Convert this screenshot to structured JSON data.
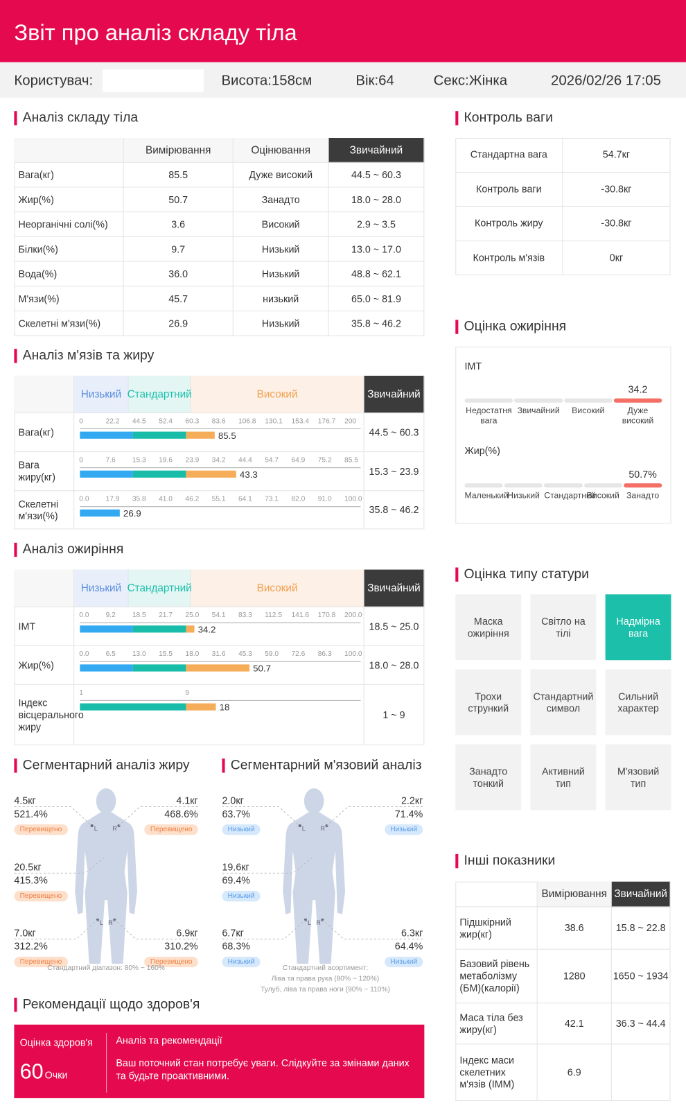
{
  "header": {
    "title": "Звіт про аналіз складу тіла"
  },
  "info": {
    "user_label": "Користувач:",
    "height": "Висота:158см",
    "age": "Вік:64",
    "sex": "Секс:Жінка",
    "datetime": "2026/02/26 17:05"
  },
  "composition": {
    "title": "Аналіз складу тіла",
    "columns": [
      "Вимірювання",
      "Оцінювання",
      "Звичайний"
    ],
    "rows": [
      [
        "Вага(кг)",
        "85.5",
        "Дуже високий",
        "44.5 ~ 60.3"
      ],
      [
        "Жир(%)",
        "50.7",
        "Занадто",
        "18.0 ~ 28.0"
      ],
      [
        "Неорганічні солі(%)",
        "3.6",
        "Високий",
        "2.9 ~ 3.5"
      ],
      [
        "Білки(%)",
        "9.7",
        "Низький",
        "13.0 ~ 17.0"
      ],
      [
        "Вода(%)",
        "36.0",
        "Низький",
        "48.8 ~ 62.1"
      ],
      [
        "М'язи(%)",
        "45.7",
        "низький",
        "65.0 ~ 81.9"
      ],
      [
        "Скелетні м'язи(%)",
        "26.9",
        "Низький",
        "35.8 ~ 46.2"
      ]
    ]
  },
  "muscle_fat": {
    "title": "Аналіз м'язів та жиру",
    "levels": [
      "Низький",
      "Стандартний",
      "Високий"
    ],
    "normal": "Звичайний",
    "rows": [
      {
        "name": "Вага(кг)",
        "ticks": [
          "0",
          "22.2",
          "44.5",
          "52.4",
          "60.3",
          "83.6",
          "106.8",
          "130.1",
          "153.4",
          "176.7",
          "200"
        ],
        "value": 85.5,
        "range": "44.5 ~ 60.3"
      },
      {
        "name": "Вага жиру(кг)",
        "ticks": [
          "0",
          "7.6",
          "15.3",
          "19.6",
          "23.9",
          "34.2",
          "44.4",
          "54.7",
          "64.9",
          "75.2",
          "85.5"
        ],
        "value": 43.3,
        "range": "15.3 ~ 23.9"
      },
      {
        "name": "Скелетні м'язи(%)",
        "ticks": [
          "0.0",
          "17.9",
          "35.8",
          "41.0",
          "46.2",
          "55.1",
          "64.1",
          "73.1",
          "82.0",
          "91.0",
          "100.0"
        ],
        "value": 26.9,
        "range": "35.8 ~ 46.2"
      }
    ]
  },
  "obesity": {
    "title": "Аналіз ожиріння",
    "levels": [
      "Низький",
      "Стандартний",
      "Високий"
    ],
    "normal": "Звичайний",
    "rows": [
      {
        "name": "IMT",
        "ticks": [
          "0.0",
          "9.2",
          "18.5",
          "21.7",
          "25.0",
          "54.1",
          "83.3",
          "112.5",
          "141.6",
          "170.8",
          "200.0"
        ],
        "value": 34.2,
        "range": "18.5 ~ 25.0"
      },
      {
        "name": "Жир(%)",
        "ticks": [
          "0.0",
          "6.5",
          "13.0",
          "15.5",
          "18.0",
          "31.6",
          "45.3",
          "59.0",
          "72.6",
          "86.3",
          "100.0"
        ],
        "value": 50.7,
        "range": "18.0 ~ 28.0"
      },
      {
        "name": "Індекс вісцерального жиру",
        "ticks": [
          "1",
          "9"
        ],
        "value": 18,
        "range": "1 ~ 9"
      }
    ]
  },
  "body_labels": {
    "left": "L",
    "right": "R"
  },
  "segmental_fat": {
    "title": "Сегментарний аналіз жиру",
    "footnote": "Стандартний діапазон: 80% ~ 160%",
    "items": [
      {
        "weight": "4.5кг",
        "percent": "521.4%",
        "status": "Перевищено"
      },
      {
        "weight": "4.1кг",
        "percent": "468.6%",
        "status": "Перевищено"
      },
      {
        "weight": "20.5кг",
        "percent": "415.3%",
        "status": "Перевищено"
      },
      {
        "weight": "7.0кг",
        "percent": "312.2%",
        "status": "Перевищено"
      },
      {
        "weight": "6.9кг",
        "percent": "310.2%",
        "status": "Перевищено"
      }
    ]
  },
  "segmental_muscle": {
    "title": "Сегментарний м'язовий аналіз",
    "footnote": [
      "Стандартний асортимент:",
      "Ліва та права рука (80% ~ 120%)",
      "Тулуб, ліва та права ноги (90% ~ 110%)"
    ],
    "items": [
      {
        "weight": "2.0кг",
        "percent": "63.7%",
        "status": "Низький"
      },
      {
        "weight": "2.2кг",
        "percent": "71.4%",
        "status": "Низький"
      },
      {
        "weight": "19.6кг",
        "percent": "69.4%",
        "status": "Низький"
      },
      {
        "weight": "6.7кг",
        "percent": "68.3%",
        "status": "Низький"
      },
      {
        "weight": "6.3кг",
        "percent": "64.4%",
        "status": "Низький"
      }
    ]
  },
  "health": {
    "title": "Рекомендації щодо здоров'я",
    "score_label": "Оцінка здоров'я",
    "score": "60",
    "score_unit": "Очки",
    "analysis_title": "Аналіз та рекомендації",
    "text": "Ваш поточний стан потребує уваги. Слідкуйте за змінами даних та будьте проактивними."
  },
  "weight_control": {
    "title": "Контроль ваги",
    "rows": [
      [
        "Стандартна вага",
        "54.7кг"
      ],
      [
        "Контроль ваги",
        "-30.8кг"
      ],
      [
        "Контроль жиру",
        "-30.8кг"
      ],
      [
        "Контроль м'язів",
        "0кг"
      ]
    ]
  },
  "obesity_assessment": {
    "title": "Оцінка ожиріння",
    "imt": {
      "label": "IMT",
      "value": "34.2",
      "levels": [
        "Недостатня вага",
        "Звичайний",
        "Високий",
        "Дуже високий"
      ],
      "active": 3
    },
    "fat": {
      "label": "Жир(%)",
      "value": "50.7%",
      "levels": [
        "Маленький",
        "Низький",
        "Стандартний",
        "Високий",
        "Занадто"
      ],
      "active": 4
    }
  },
  "body_type": {
    "title": "Оцінка типу статури",
    "cells": [
      "Маска ожиріння",
      "Світло на тілі",
      "Надмірна вага",
      "Трохи стрункий",
      "Стандартний символ",
      "Сильний характер",
      "Занадто тонкий",
      "Активний тип",
      "М'язовий тип"
    ],
    "active": 2
  },
  "other": {
    "title": "Інші показники",
    "columns": [
      "Вимірювання",
      "Звичайний"
    ],
    "rows": [
      [
        "Підшкірний жир(кг)",
        "38.6",
        "15.8 ~ 22.8"
      ],
      [
        "Базовий рівень метаболізму (БМ)(калорії)",
        "1280",
        "1650 ~ 1934"
      ],
      [
        "Маса тіла без жиру(кг)",
        "42.1",
        "36.3 ~ 44.4"
      ],
      [
        "Індекс маси скелетних м'язів (IMM)",
        "6.9"
      ]
    ]
  }
}
